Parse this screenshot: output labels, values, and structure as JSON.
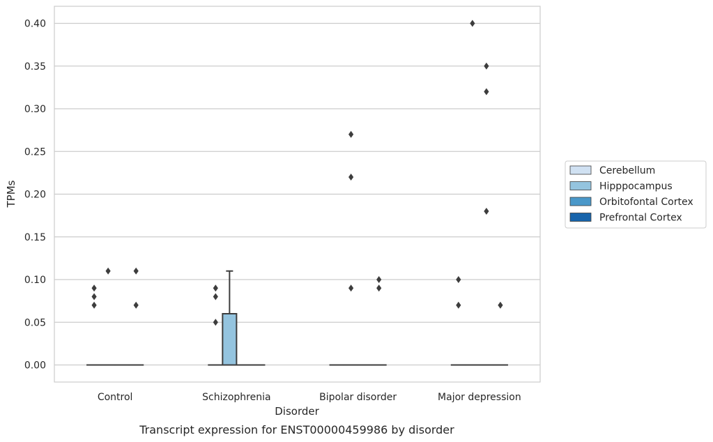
{
  "colors": {
    "Cerebellum": "#d0e1f2",
    "Hipppocampus": "#94c4df",
    "Orbitofontal Cortex": "#4a98c9",
    "Prefrontal Cortex": "#1764ab",
    "line": "#3d3d3d",
    "grid": "#cccccc",
    "frame": "#cccccc"
  },
  "chart_data": {
    "type": "box",
    "caption": "Transcript expression for ENST00000459986 by disorder",
    "xlabel": "Disorder",
    "ylabel": "TPMs",
    "ylim": [
      -0.02,
      0.42
    ],
    "yticks": [
      "0.00",
      "0.05",
      "0.10",
      "0.15",
      "0.20",
      "0.25",
      "0.30",
      "0.35",
      "0.40"
    ],
    "categories": [
      "Control",
      "Schizophrenia",
      "Bipolar disorder",
      "Major depression"
    ],
    "grid": "horizontal",
    "legend_position": "right",
    "series": [
      {
        "name": "Cerebellum",
        "boxes": [
          {
            "q1": 0,
            "median": 0,
            "q3": 0,
            "whisker_low": 0,
            "whisker_high": 0,
            "outliers": [
              0.07,
              0.08,
              0.09
            ]
          },
          {
            "q1": 0,
            "median": 0,
            "q3": 0,
            "whisker_low": 0,
            "whisker_high": 0,
            "outliers": [
              0.05,
              0.08,
              0.09
            ]
          },
          {
            "q1": 0,
            "median": 0,
            "q3": 0,
            "whisker_low": 0,
            "whisker_high": 0,
            "outliers": []
          },
          {
            "q1": 0,
            "median": 0,
            "q3": 0,
            "whisker_low": 0,
            "whisker_high": 0,
            "outliers": [
              0.07,
              0.1
            ]
          }
        ]
      },
      {
        "name": "Hipppocampus",
        "boxes": [
          {
            "q1": 0,
            "median": 0,
            "q3": 0,
            "whisker_low": 0,
            "whisker_high": 0,
            "outliers": [
              0.11
            ]
          },
          {
            "q1": 0,
            "median": 0,
            "q3": 0.06,
            "whisker_low": 0,
            "whisker_high": 0.11,
            "outliers": []
          },
          {
            "q1": 0,
            "median": 0,
            "q3": 0,
            "whisker_low": 0,
            "whisker_high": 0,
            "outliers": [
              0.09,
              0.22,
              0.27
            ]
          },
          {
            "q1": 0,
            "median": 0,
            "q3": 0,
            "whisker_low": 0,
            "whisker_high": 0,
            "outliers": [
              0.4
            ]
          }
        ]
      },
      {
        "name": "Orbitofontal Cortex",
        "boxes": [
          {
            "q1": 0,
            "median": 0,
            "q3": 0,
            "whisker_low": 0,
            "whisker_high": 0,
            "outliers": []
          },
          {
            "q1": 0,
            "median": 0,
            "q3": 0,
            "whisker_low": 0,
            "whisker_high": 0,
            "outliers": []
          },
          {
            "q1": 0,
            "median": 0,
            "q3": 0,
            "whisker_low": 0,
            "whisker_high": 0,
            "outliers": []
          },
          {
            "q1": 0,
            "median": 0,
            "q3": 0,
            "whisker_low": 0,
            "whisker_high": 0,
            "outliers": [
              0.18,
              0.32,
              0.35
            ]
          }
        ]
      },
      {
        "name": "Prefrontal Cortex",
        "boxes": [
          {
            "q1": 0,
            "median": 0,
            "q3": 0,
            "whisker_low": 0,
            "whisker_high": 0,
            "outliers": [
              0.07,
              0.11
            ]
          },
          {
            "q1": 0,
            "median": 0,
            "q3": 0,
            "whisker_low": 0,
            "whisker_high": 0,
            "outliers": []
          },
          {
            "q1": 0,
            "median": 0,
            "q3": 0,
            "whisker_low": 0,
            "whisker_high": 0,
            "outliers": [
              0.09,
              0.1
            ]
          },
          {
            "q1": 0,
            "median": 0,
            "q3": 0,
            "whisker_low": 0,
            "whisker_high": 0,
            "outliers": [
              0.07
            ]
          }
        ]
      }
    ]
  }
}
